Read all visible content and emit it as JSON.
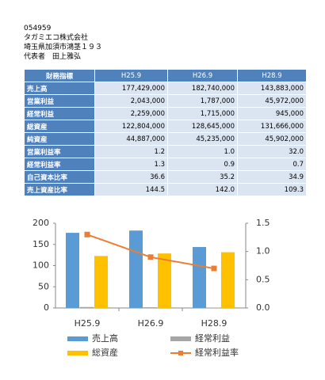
{
  "header": {
    "code": "054959",
    "company": "タガミエコ株式会社",
    "address": "埼玉県加須市鴻茎１９３",
    "representative": "代表者　田上雅弘"
  },
  "table": {
    "columns": [
      "財務指標",
      "H25.9",
      "H26.9",
      "H28.9"
    ],
    "rows": [
      [
        "売上高",
        "177,429,000",
        "182,740,000",
        "143,883,000"
      ],
      [
        "営業利益",
        "2,043,000",
        "1,787,000",
        "45,972,000"
      ],
      [
        "経常利益",
        "2,259,000",
        "1,715,000",
        "945,000"
      ],
      [
        "総資産",
        "122,804,000",
        "128,645,000",
        "131,666,000"
      ],
      [
        "純資産",
        "44,887,000",
        "45,235,000",
        "45,902,000"
      ],
      [
        "営業利益率",
        "1.2",
        "1.0",
        "32.0"
      ],
      [
        "経常利益率",
        "1.3",
        "0.9",
        "0.7"
      ],
      [
        "自己資本比率",
        "36.6",
        "35.2",
        "34.9"
      ],
      [
        "売上資産比率",
        "144.5",
        "142.0",
        "109.3"
      ]
    ]
  },
  "chart_data": {
    "type": "bar",
    "categories": [
      "H25.9",
      "H26.9",
      "H28.9"
    ],
    "series": [
      {
        "name": "売上高",
        "color": "#5b9bd5",
        "values": [
          177.429,
          182.74,
          143.883
        ]
      },
      {
        "name": "経常利益",
        "color": "#a5a5a5",
        "values": [
          2.259,
          1.715,
          0.945
        ]
      },
      {
        "name": "総資産",
        "color": "#ffc000",
        "values": [
          122.804,
          128.645,
          131.666
        ]
      },
      {
        "name": "経常利益率",
        "color": "#ed7d31",
        "type": "line",
        "axis": "y2",
        "values": [
          1.3,
          0.9,
          0.7
        ]
      }
    ],
    "ylim": [
      0,
      200
    ],
    "yticks": [
      0,
      50,
      100,
      150,
      200
    ],
    "y2lim": [
      0,
      1.5
    ],
    "y2ticks": [
      {
        "value": 0,
        "label": "0.0"
      },
      {
        "value": 0.5,
        "label": "0.5"
      },
      {
        "value": 1,
        "label": "1.0"
      },
      {
        "value": 1.5,
        "label": "1.5"
      }
    ]
  }
}
